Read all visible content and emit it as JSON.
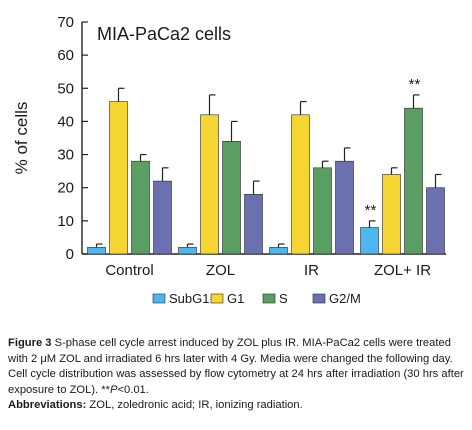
{
  "chart_data": {
    "type": "bar",
    "title": "MIA-PaCa2 cells",
    "ylabel": "% of cells",
    "xlabel": "",
    "ylim": [
      0,
      70
    ],
    "yticks": [
      0,
      10,
      20,
      30,
      40,
      50,
      60,
      70
    ],
    "categories": [
      "Control",
      "ZOL",
      "IR",
      "ZOL+ IR"
    ],
    "series": [
      {
        "name": "SubG1",
        "color": "#4db8f0",
        "values": [
          2,
          2,
          2,
          8
        ],
        "errors": [
          1,
          1,
          1,
          2
        ]
      },
      {
        "name": "G1",
        "color": "#f5d531",
        "values": [
          46,
          42,
          42,
          24
        ],
        "errors": [
          4,
          6,
          4,
          2
        ]
      },
      {
        "name": "S",
        "color": "#5a9e64",
        "values": [
          28,
          34,
          26,
          44
        ],
        "errors": [
          2,
          6,
          2,
          4
        ]
      },
      {
        "name": "G2/M",
        "color": "#6a70b0",
        "values": [
          22,
          18,
          28,
          20
        ],
        "errors": [
          4,
          4,
          4,
          4
        ]
      }
    ],
    "annotations": [
      {
        "category": "ZOL+ IR",
        "series": "SubG1",
        "text": "**"
      },
      {
        "category": "ZOL+ IR",
        "series": "S",
        "text": "**"
      }
    ],
    "legend_position": "bottom",
    "grid": false
  },
  "caption": {
    "label": "Figure 3",
    "text": " S-phase cell cycle arrest induced by ZOL plus IR. MIA-PaCa2 cells were treated with 2 μM ZOL and irradiated 6 hrs later with 4 Gy. Media were changed the following day. Cell cycle distribution was assessed by flow cytometry at 24 hrs after irradiation (30 hrs after exposure to ZOL). **",
    "pvalue": "P",
    "pvalue_rest": "<0.01.",
    "abbr_label": "Abbreviations:",
    "abbr_text": " ZOL, zoledronic acid; IR, ionizing radiation."
  }
}
